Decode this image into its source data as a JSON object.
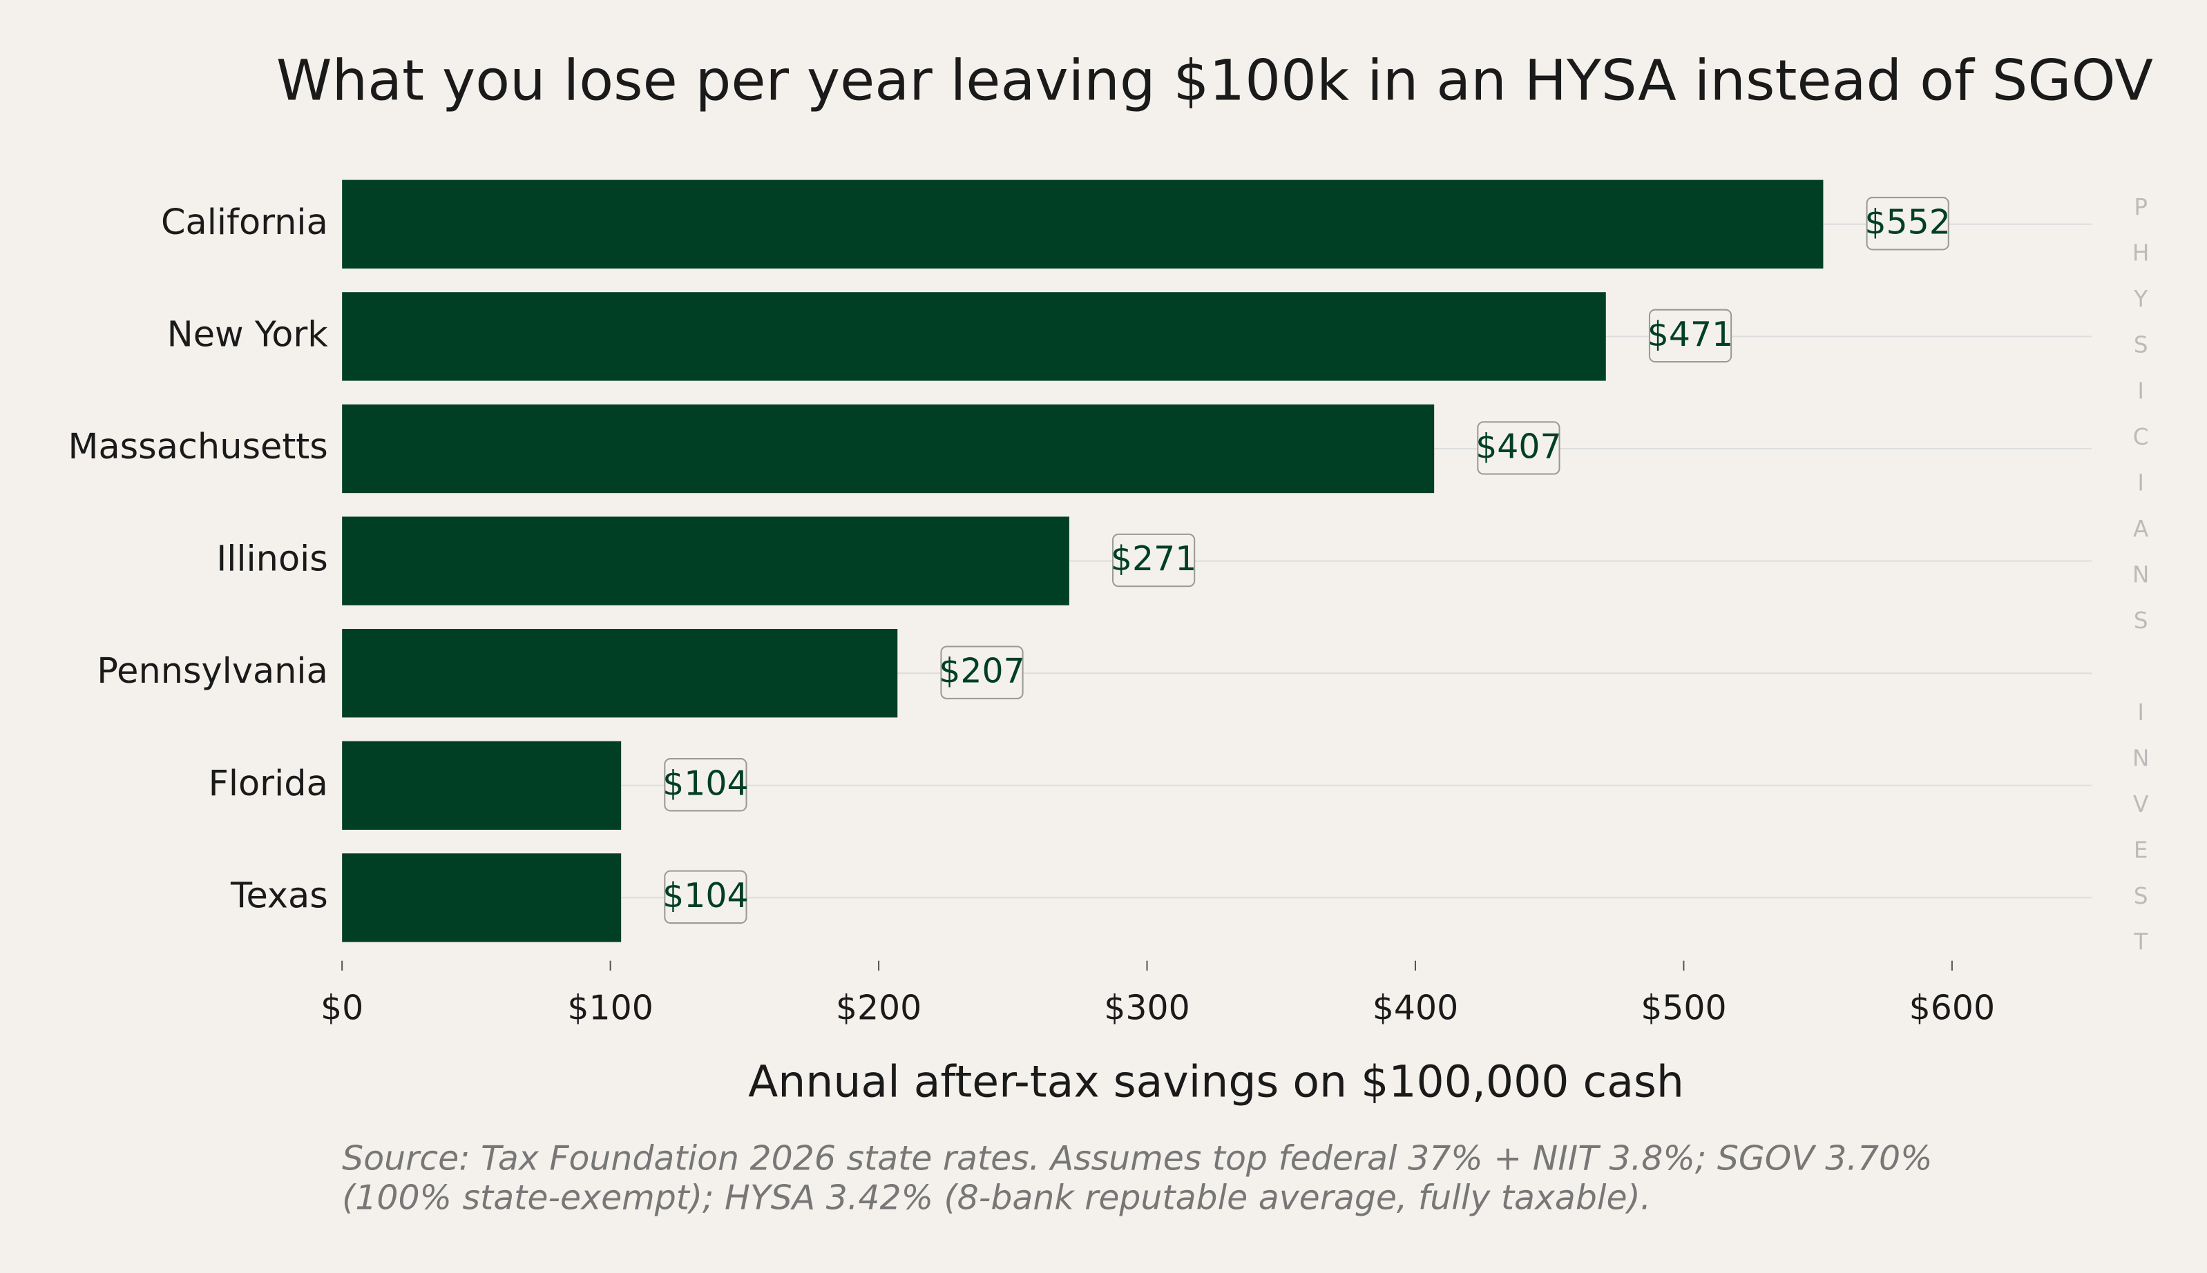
{
  "chart_data": {
    "type": "barh",
    "title": "What you lose per year leaving $100k in an HYSA instead of SGOV",
    "categories": [
      "California",
      "New York",
      "Massachusetts",
      "Illinois",
      "Pennsylvania",
      "Florida",
      "Texas"
    ],
    "values": [
      552,
      471,
      407,
      271,
      207,
      104,
      104
    ],
    "value_labels": [
      "$552",
      "$471",
      "$407",
      "$271",
      "$207",
      "$104",
      "$104"
    ],
    "color": "#013f25",
    "xlabel": "Annual after-tax savings on $100,000 cash",
    "xlim": [
      0,
      652
    ],
    "xticks": [
      {
        "value": 0,
        "label": "$0"
      },
      {
        "value": 100,
        "label": "$100"
      },
      {
        "value": 200,
        "label": "$200"
      },
      {
        "value": 300,
        "label": "$300"
      },
      {
        "value": 400,
        "label": "$400"
      },
      {
        "value": 500,
        "label": "$500"
      },
      {
        "value": 600,
        "label": "$600"
      }
    ],
    "notes": [
      "Source: Tax Foundation 2026 state rates. Assumes top federal 37% + NIIT 3.8%; SGOV 3.70%",
      "(100% state-exempt); HYSA 3.42% (8-bank reputable average, fully taxable)."
    ],
    "watermark": "PHYSICIANS INVEST"
  }
}
